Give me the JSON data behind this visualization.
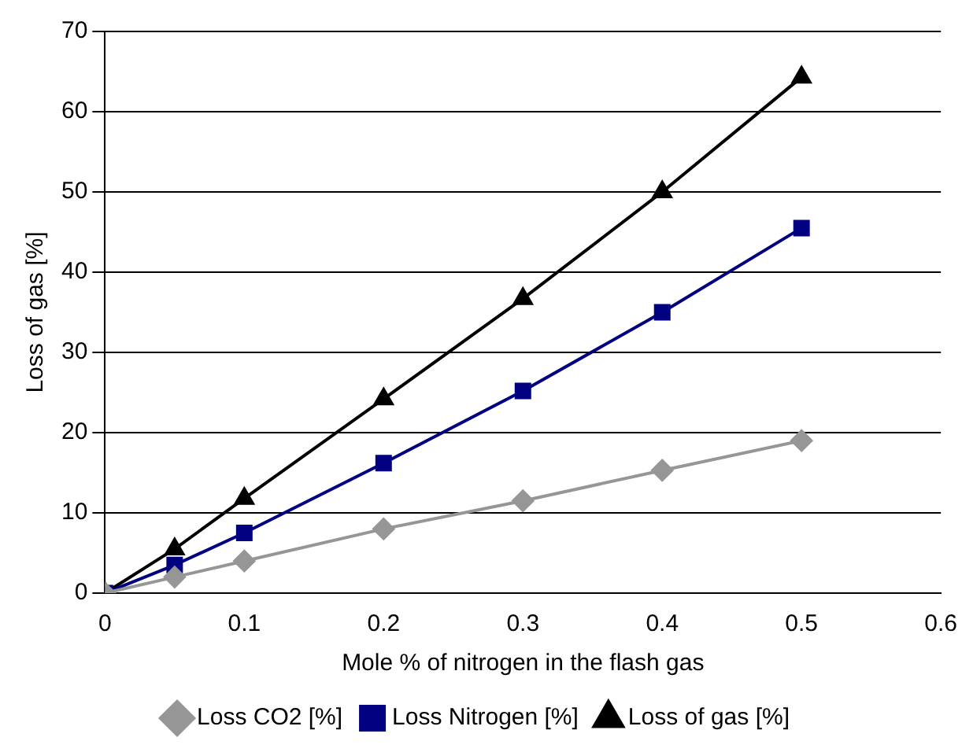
{
  "chart_data": {
    "type": "line",
    "xlabel": "Mole % of nitrogen in the flash gas",
    "ylabel": "Loss of gas [%]",
    "x": [
      0,
      0.05,
      0.1,
      0.2,
      0.3,
      0.4,
      0.5
    ],
    "series": [
      {
        "name": "Loss CO2 [%]",
        "color": "#969696",
        "marker": "diamond",
        "values": [
          0,
          2,
          4,
          8,
          11.5,
          15.3,
          19
        ]
      },
      {
        "name": "Loss Nitrogen [%]",
        "color": "#000080",
        "marker": "square",
        "values": [
          0,
          3.5,
          7.5,
          16.2,
          25.2,
          35,
          45.5
        ]
      },
      {
        "name": "Loss of gas [%]",
        "color": "#000000",
        "marker": "triangle",
        "values": [
          0,
          5.5,
          11.8,
          24.2,
          36.7,
          50,
          64.3
        ]
      }
    ],
    "xlim": [
      0,
      0.6
    ],
    "xticks": [
      0,
      0.1,
      0.2,
      0.3,
      0.4,
      0.5,
      0.6
    ],
    "ylim": [
      0,
      70
    ],
    "yticks": [
      0,
      10,
      20,
      30,
      40,
      50,
      60,
      70
    ],
    "grid": "y",
    "legend": "bottom",
    "line_style": "solid"
  }
}
